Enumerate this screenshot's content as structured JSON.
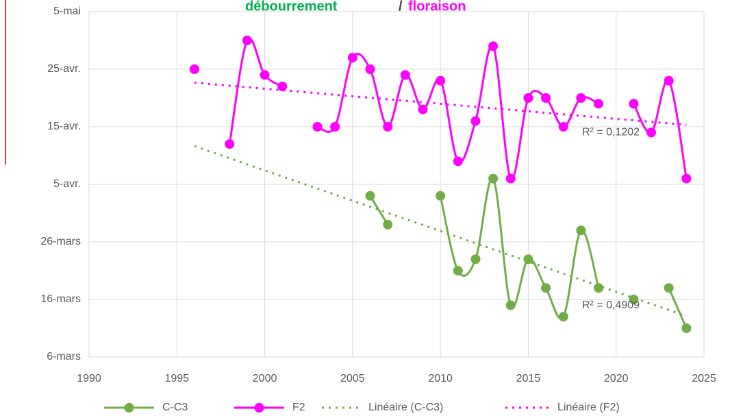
{
  "chart_data": {
    "type": "line",
    "title": [
      "débourrement",
      "/",
      "floraison"
    ],
    "x": [
      1996,
      1997,
      1998,
      1999,
      2000,
      2001,
      2002,
      2003,
      2004,
      2005,
      2006,
      2007,
      2008,
      2009,
      2010,
      2011,
      2012,
      2013,
      2014,
      2015,
      2016,
      2017,
      2018,
      2019,
      2020,
      2021,
      2022,
      2023,
      2024
    ],
    "series": [
      {
        "name": "C-C3",
        "color": "#70ad47",
        "values": [
          null,
          null,
          null,
          null,
          null,
          null,
          null,
          null,
          null,
          null,
          93,
          88,
          null,
          null,
          93,
          80,
          82,
          96,
          74,
          82,
          77,
          72,
          87,
          77,
          null,
          75,
          null,
          77,
          70
        ]
      },
      {
        "name": "F2",
        "color": "#ff00ff",
        "values": [
          115,
          null,
          102,
          120,
          114,
          112,
          null,
          105,
          105,
          117,
          115,
          105,
          114,
          108,
          113,
          99,
          106,
          119,
          96,
          110,
          110,
          105,
          110,
          109,
          null,
          109,
          104,
          113,
          96
        ]
      }
    ],
    "trendlines": [
      {
        "name": "Linéaire (C-C3)",
        "series": 0,
        "r2_label": "R² = 0,4909"
      },
      {
        "name": "Linéaire (F2)",
        "series": 1,
        "r2_label": "R² = 0,1202"
      }
    ],
    "xlim": [
      1990,
      2025
    ],
    "xticks": [
      1990,
      1995,
      2000,
      2005,
      2010,
      2015,
      2020,
      2025
    ],
    "ylim": [
      65,
      125
    ],
    "yticks": [
      {
        "value": 65,
        "label": "6-mars"
      },
      {
        "value": 75,
        "label": "16-mars"
      },
      {
        "value": 85,
        "label": "26-mars"
      },
      {
        "value": 95,
        "label": "5-avr."
      },
      {
        "value": 105,
        "label": "15-avr."
      },
      {
        "value": 115,
        "label": "25-avr."
      },
      {
        "value": 125,
        "label": "5-mai"
      }
    ],
    "grid": true,
    "legend": "bottom"
  }
}
